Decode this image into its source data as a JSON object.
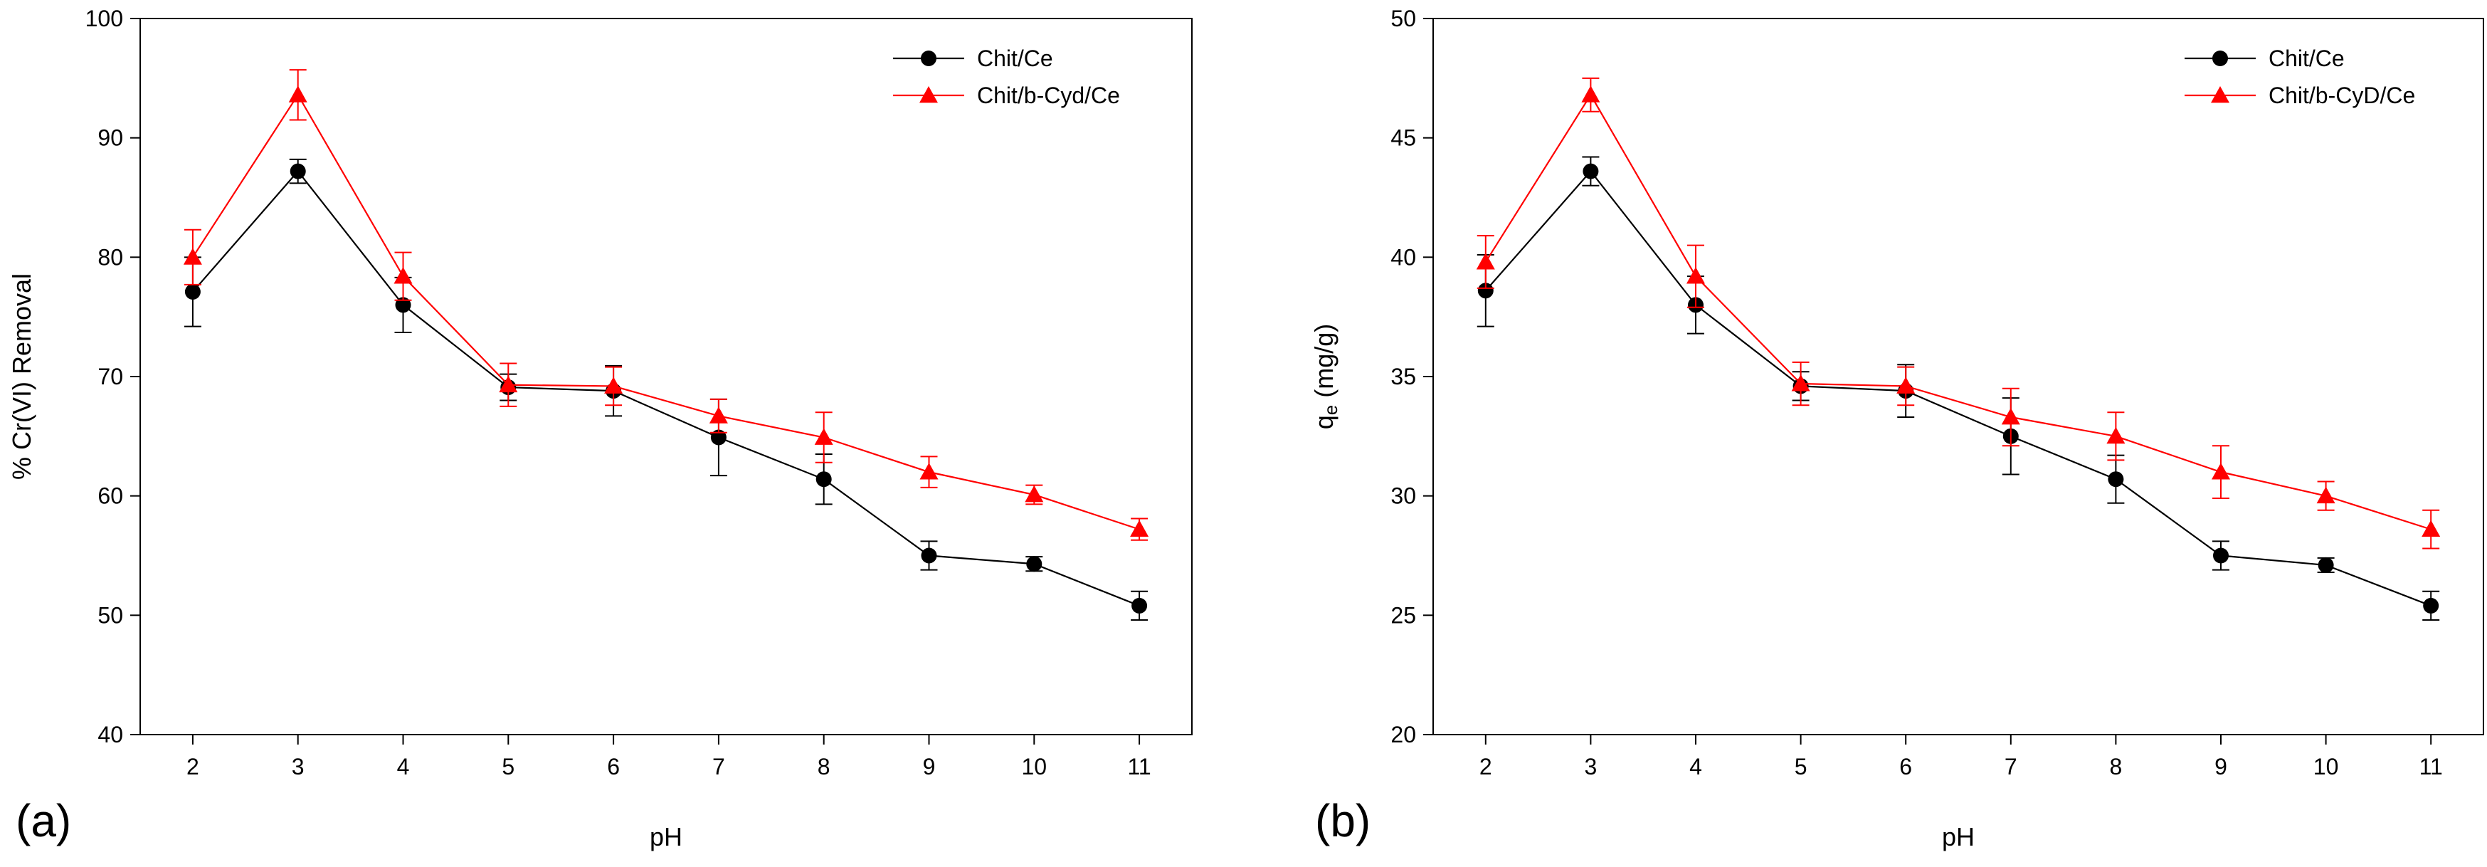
{
  "chart_data": [
    {
      "type": "line",
      "panel_label": "(a)",
      "xlabel": "pH",
      "ylabel": "% Cr(VI) Removal",
      "ylabel_sub": "",
      "ylabel_rest": "",
      "xlim": [
        1.5,
        11.5
      ],
      "ylim": [
        40,
        100
      ],
      "xticks": [
        2,
        3,
        4,
        5,
        6,
        7,
        8,
        9,
        10,
        11
      ],
      "yticks": [
        40,
        50,
        60,
        70,
        80,
        90,
        100
      ],
      "legend_position": "top-right",
      "series": [
        {
          "name": "Chit/Ce",
          "marker": "circle",
          "color": "#000000",
          "x": [
            2,
            3,
            4,
            5,
            6,
            7,
            8,
            9,
            10,
            11
          ],
          "y": [
            77.1,
            87.2,
            76.0,
            69.1,
            68.8,
            64.9,
            61.4,
            55.0,
            54.3,
            50.8
          ],
          "err": [
            2.9,
            1.0,
            2.3,
            1.1,
            2.1,
            3.2,
            2.1,
            1.2,
            0.6,
            1.2
          ]
        },
        {
          "name": "Chit/b-Cyd/Ce",
          "marker": "triangle",
          "color": "#ff0000",
          "x": [
            2,
            3,
            4,
            5,
            6,
            7,
            8,
            9,
            10,
            11
          ],
          "y": [
            80.0,
            93.6,
            78.4,
            69.3,
            69.2,
            66.7,
            64.9,
            62.0,
            60.1,
            57.2
          ],
          "err": [
            2.3,
            2.1,
            2.0,
            1.8,
            1.6,
            1.4,
            2.1,
            1.3,
            0.8,
            0.9
          ]
        }
      ]
    },
    {
      "type": "line",
      "panel_label": "(b)",
      "xlabel": "pH",
      "ylabel": "q",
      "ylabel_sub": "e",
      "ylabel_rest": " (mg/g)",
      "xlim": [
        1.5,
        11.5
      ],
      "ylim": [
        20,
        50
      ],
      "xticks": [
        2,
        3,
        4,
        5,
        6,
        7,
        8,
        9,
        10,
        11
      ],
      "yticks": [
        20,
        25,
        30,
        35,
        40,
        45,
        50
      ],
      "legend_position": "top-right",
      "series": [
        {
          "name": "Chit/Ce",
          "marker": "circle",
          "color": "#000000",
          "x": [
            2,
            3,
            4,
            5,
            6,
            7,
            8,
            9,
            10,
            11
          ],
          "y": [
            38.6,
            43.6,
            38.0,
            34.6,
            34.4,
            32.5,
            30.7,
            27.5,
            27.1,
            25.4
          ],
          "err": [
            1.5,
            0.6,
            1.2,
            0.6,
            1.1,
            1.6,
            1.0,
            0.6,
            0.3,
            0.6
          ]
        },
        {
          "name": "Chit/b-CyD/Ce",
          "marker": "triangle",
          "color": "#ff0000",
          "x": [
            2,
            3,
            4,
            5,
            6,
            7,
            8,
            9,
            10,
            11
          ],
          "y": [
            39.8,
            46.8,
            39.2,
            34.7,
            34.6,
            33.3,
            32.5,
            31.0,
            30.0,
            28.6
          ],
          "err": [
            1.1,
            0.7,
            1.3,
            0.9,
            0.8,
            1.2,
            1.0,
            1.1,
            0.6,
            0.8
          ]
        }
      ]
    }
  ]
}
